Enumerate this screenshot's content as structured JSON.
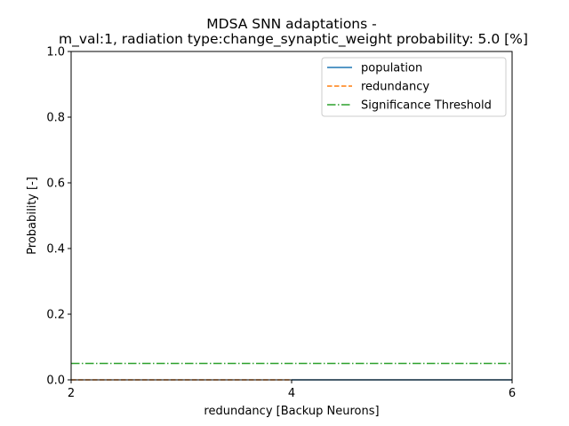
{
  "chart_data": {
    "type": "line",
    "title_lines": [
      "MDSA SNN adaptations -",
      "m_val:1, radiation type:change_synaptic_weight probability: 5.0 [%]"
    ],
    "xlabel": "redundancy [Backup Neurons]",
    "ylabel": "Probability [-]",
    "xlim": [
      2,
      6
    ],
    "ylim": [
      0,
      1.0
    ],
    "xticks": [
      2,
      4,
      6
    ],
    "xtick_labels": [
      "2",
      "4",
      "6"
    ],
    "yticks": [
      0.0,
      0.2,
      0.4,
      0.6,
      0.8,
      1.0
    ],
    "ytick_labels": [
      "0.0",
      "0.2",
      "0.4",
      "0.6",
      "0.8",
      "1.0"
    ],
    "grid": false,
    "legend_position": "upper right",
    "series": [
      {
        "name": "population",
        "style": "solid",
        "color": "#1f77b4",
        "x": [
          4,
          6
        ],
        "y": [
          0.0,
          0.0
        ]
      },
      {
        "name": "redundancy",
        "style": "dashed",
        "color": "#ff7f0e",
        "x": [
          2,
          4
        ],
        "y": [
          0.0,
          0.0
        ]
      },
      {
        "name": "Significance Threshold",
        "style": "dashdot",
        "color": "#2ca02c",
        "x": [
          2,
          6
        ],
        "y": [
          0.05,
          0.05
        ]
      }
    ]
  }
}
